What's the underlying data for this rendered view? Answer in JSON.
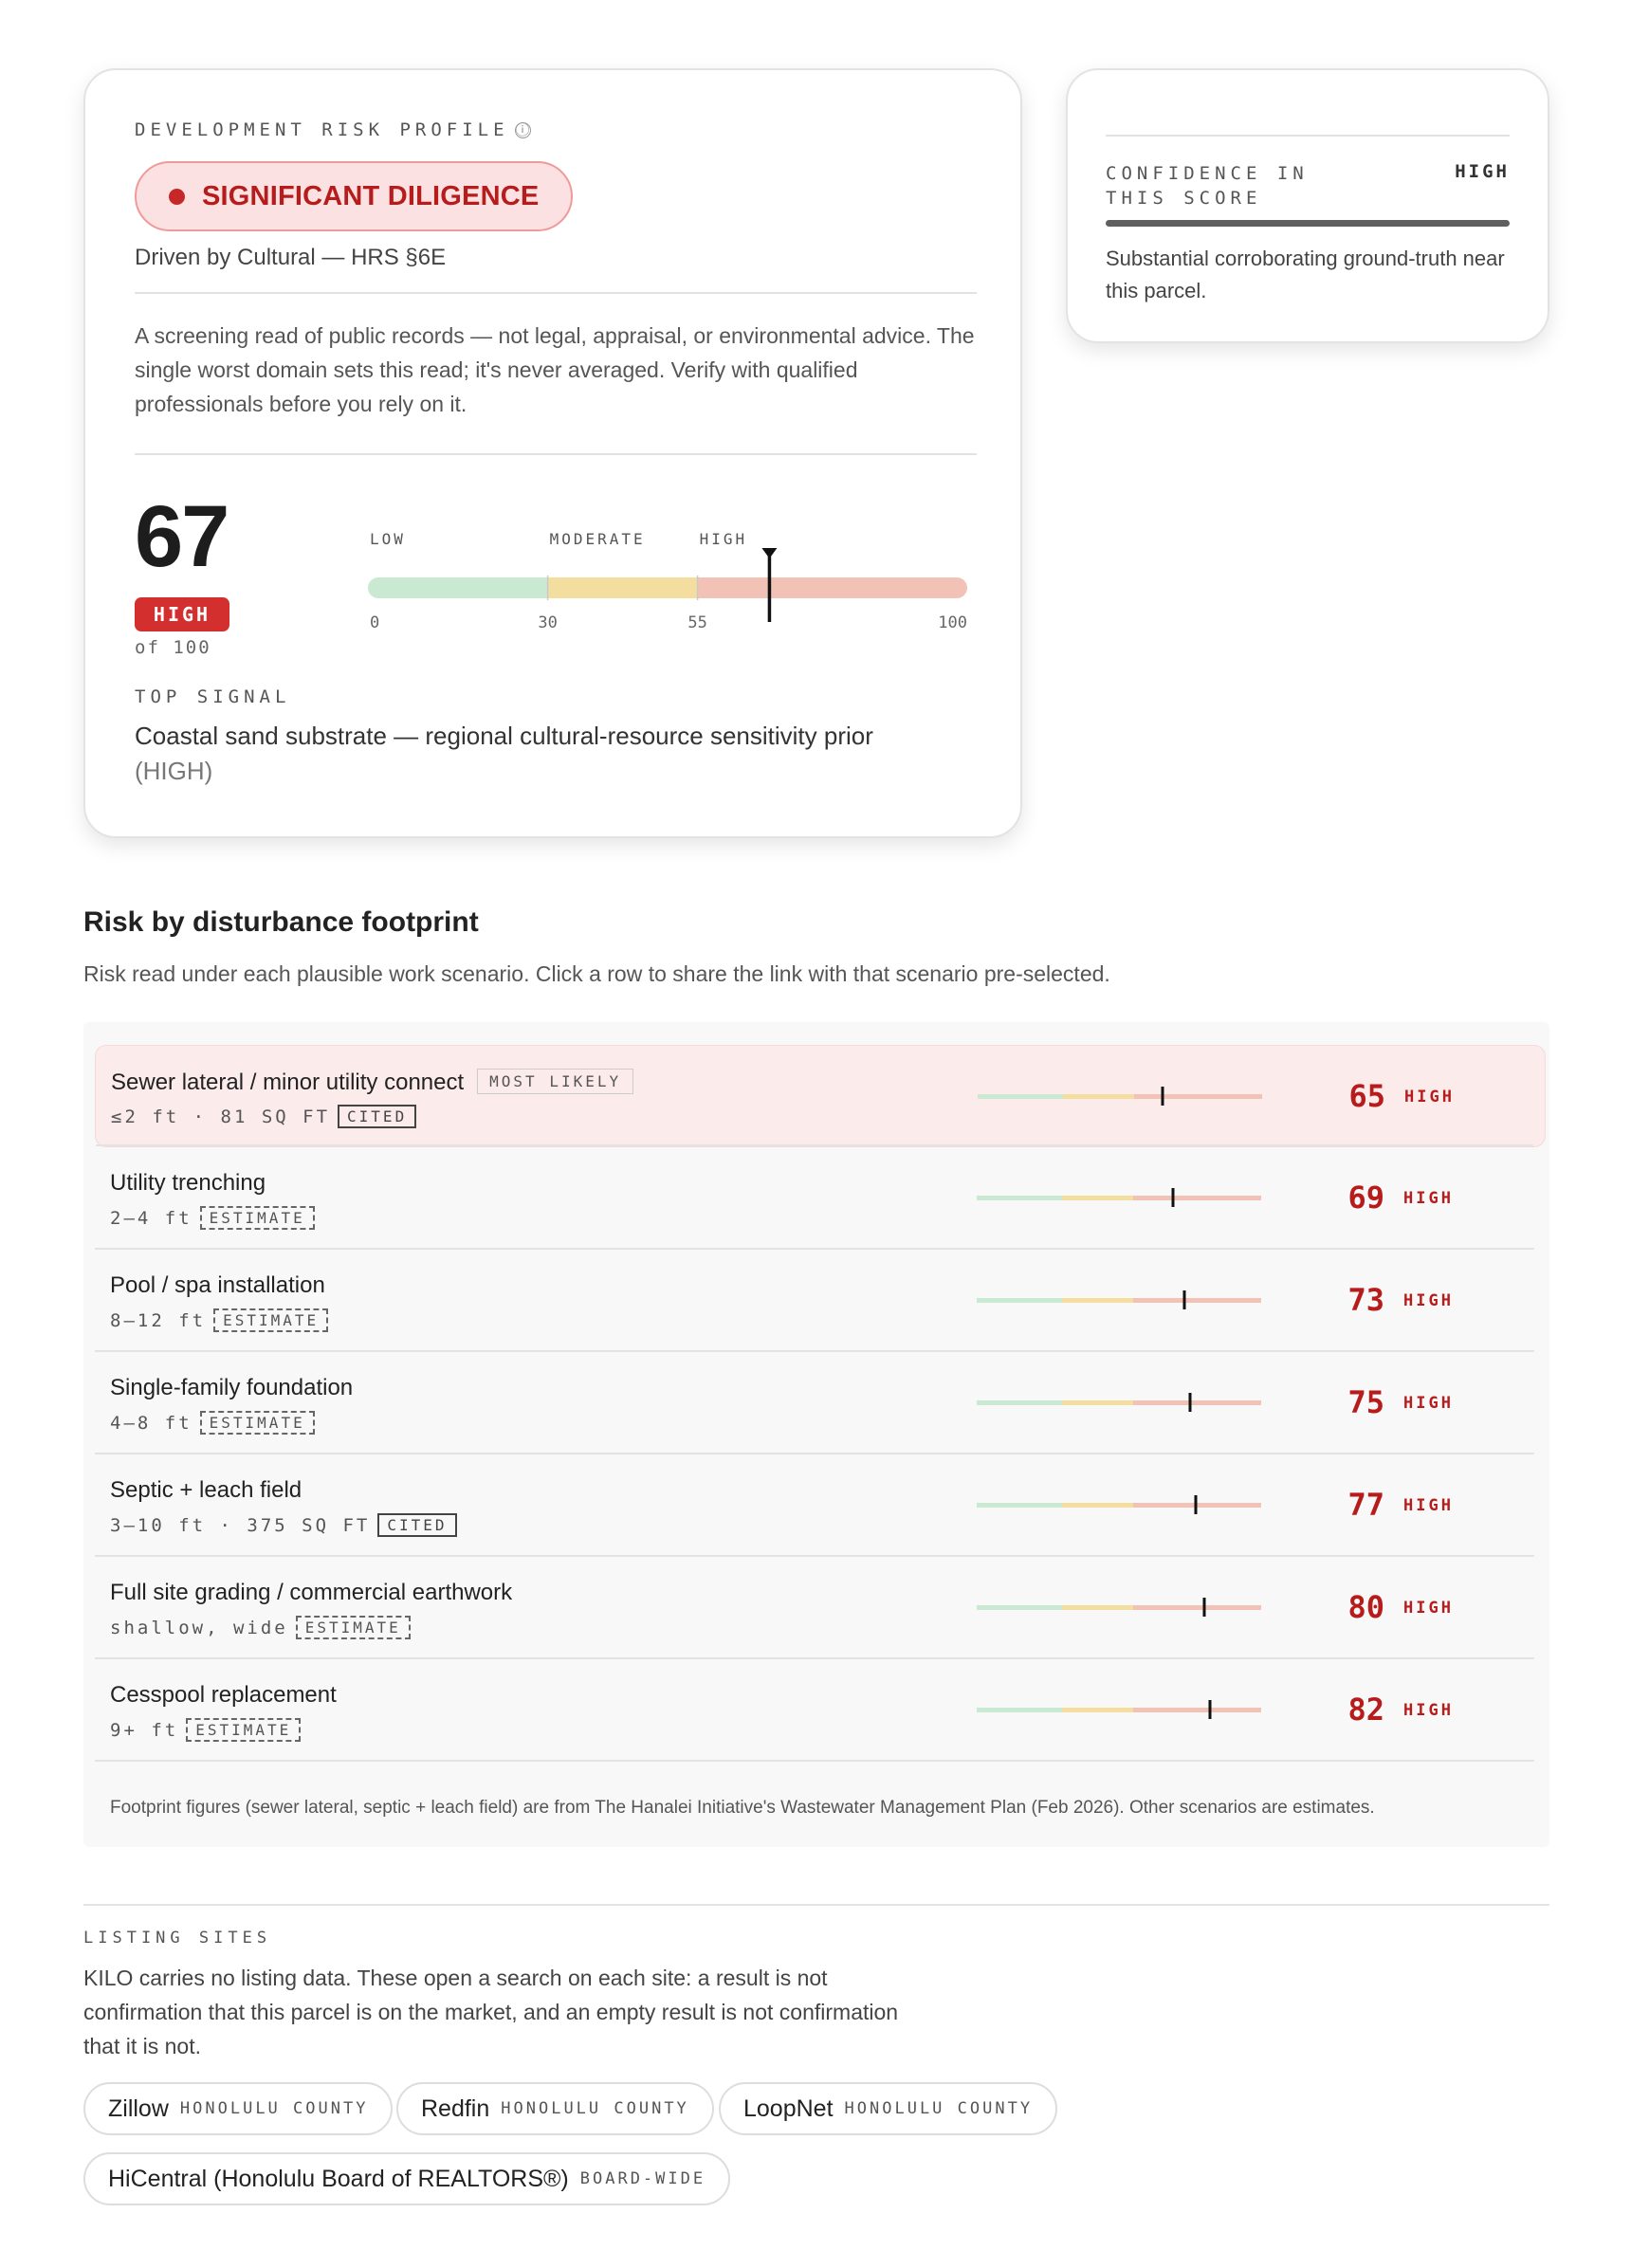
{
  "risk_profile": {
    "label": "DEVELOPMENT RISK PROFILE",
    "info_icon": "ⓘ",
    "verdict": "SIGNIFICANT DILIGENCE",
    "driven_by": "Driven by Cultural — HRS §6E",
    "disclaimer": "A screening read of public records — not legal, appraisal, or environmental advice. The single worst domain sets this read; it's never averaged. Verify with qualified professionals before you rely on it.",
    "score": "67",
    "score_value": 67,
    "tier": "HIGH",
    "of_label": "of 100",
    "scale": {
      "bands": [
        {
          "label": "LOW",
          "from": 0,
          "to": 30,
          "color": "#c9e9d3"
        },
        {
          "label": "MODERATE",
          "from": 30,
          "to": 55,
          "color": "#f3dd9f"
        },
        {
          "label": "HIGH",
          "from": 55,
          "to": 100,
          "color": "#f2c2b6"
        }
      ],
      "ticks": [
        "0",
        "30",
        "55",
        "100"
      ],
      "tick_values": [
        0,
        30,
        55,
        100
      ]
    },
    "top_signal_label": "TOP SIGNAL",
    "top_signal": "Coastal sand substrate — regional cultural-resource sensitivity prior",
    "top_signal_tier": "(HIGH)"
  },
  "confidence": {
    "label": "CONFIDENCE IN THIS SCORE",
    "value": "HIGH",
    "level": 1.0,
    "description": "Substantial corroborating ground-truth near this parcel."
  },
  "footprint": {
    "title": "Risk by disturbance footprint",
    "subtitle": "Risk read under each plausible work scenario. Click a row to share the link with that scenario pre-selected.",
    "rows": [
      {
        "name": "Sewer lateral / minor utility connect",
        "tag": "MOST LIKELY",
        "meta": "≤2 ft · 81 SQ FT",
        "source": "CITED",
        "score": "65",
        "value": 65,
        "tier": "HIGH",
        "selected": true
      },
      {
        "name": "Utility trenching",
        "tag": "",
        "meta": "2–4 ft",
        "source": "ESTIMATE",
        "score": "69",
        "value": 69,
        "tier": "HIGH",
        "selected": false
      },
      {
        "name": "Pool / spa installation",
        "tag": "",
        "meta": "8–12 ft",
        "source": "ESTIMATE",
        "score": "73",
        "value": 73,
        "tier": "HIGH",
        "selected": false
      },
      {
        "name": "Single-family foundation",
        "tag": "",
        "meta": "4–8 ft",
        "source": "ESTIMATE",
        "score": "75",
        "value": 75,
        "tier": "HIGH",
        "selected": false
      },
      {
        "name": "Septic + leach field",
        "tag": "",
        "meta": "3–10 ft · 375 SQ FT",
        "source": "CITED",
        "score": "77",
        "value": 77,
        "tier": "HIGH",
        "selected": false
      },
      {
        "name": "Full site grading / commercial earthwork",
        "tag": "",
        "meta": "shallow, wide",
        "source": "ESTIMATE",
        "score": "80",
        "value": 80,
        "tier": "HIGH",
        "selected": false
      },
      {
        "name": "Cesspool replacement",
        "tag": "",
        "meta": "9+ ft",
        "source": "ESTIMATE",
        "score": "82",
        "value": 82,
        "tier": "HIGH",
        "selected": false
      }
    ],
    "footnote": "Footprint figures (sewer lateral, septic + leach field) are from The Hanalei Initiative's Wastewater Management Plan (Feb 2026). Other scenarios are estimates."
  },
  "listing": {
    "label": "LISTING SITES",
    "description": "KILO carries no listing data. These open a search on each site: a result is not confirmation that this parcel is on the market, and an empty result is not confirmation that it is not.",
    "sites": [
      {
        "name": "Zillow",
        "scope": "HONOLULU COUNTY"
      },
      {
        "name": "Redfin",
        "scope": "HONOLULU COUNTY"
      },
      {
        "name": "LoopNet",
        "scope": "HONOLULU COUNTY"
      },
      {
        "name": "HiCentral (Honolulu Board of REALTORS®)",
        "scope": "BOARD-WIDE"
      }
    ]
  },
  "colors": {
    "accent_red": "#c62828",
    "score_red": "#b71c1c",
    "low_band": "#c9e9d3",
    "moderate_band": "#f3dd9f",
    "high_band": "#f2c2b6"
  }
}
